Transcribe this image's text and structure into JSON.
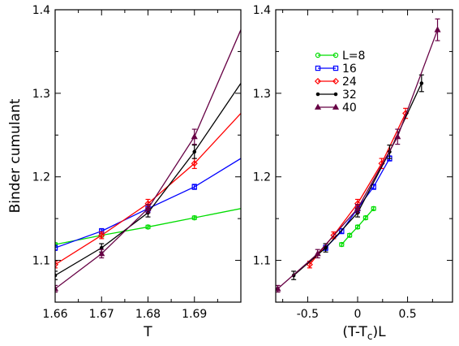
{
  "chart_data": [
    {
      "type": "line",
      "xlabel": "T",
      "ylabel": "Binder cumulant",
      "xlim": [
        1.66,
        1.7
      ],
      "ylim": [
        1.05,
        1.4
      ],
      "xticks": [
        1.66,
        1.67,
        1.68,
        1.69
      ],
      "xtick_labels": [
        "1.66",
        "1.67",
        "1.68",
        "1.69"
      ],
      "yticks": [
        1.1,
        1.2,
        1.3,
        1.4
      ],
      "ytick_labels": [
        "1.1",
        "1.2",
        "1.3",
        "1.4"
      ],
      "grid": false,
      "series": [
        {
          "name": "L=8",
          "color": "#00dd00",
          "marker": "circle",
          "x": [
            1.66,
            1.67,
            1.68,
            1.69
          ],
          "y": [
            1.119,
            1.13,
            1.14,
            1.151
          ],
          "err": [
            0.002,
            0.002,
            0.002,
            0.002
          ],
          "extend": {
            "x": 1.7,
            "y": 1.162
          }
        },
        {
          "name": "16",
          "color": "#0000ff",
          "marker": "square",
          "x": [
            1.66,
            1.67,
            1.68,
            1.69
          ],
          "y": [
            1.115,
            1.135,
            1.162,
            1.188
          ],
          "err": [
            0.003,
            0.003,
            0.004,
            0.003
          ],
          "extend": {
            "x": 1.7,
            "y": 1.222
          }
        },
        {
          "name": "24",
          "color": "#ff0000",
          "marker": "diamond",
          "x": [
            1.66,
            1.67,
            1.68,
            1.69
          ],
          "y": [
            1.095,
            1.13,
            1.168,
            1.216
          ],
          "err": [
            0.004,
            0.004,
            0.005,
            0.006
          ],
          "extend": {
            "x": 1.7,
            "y": 1.276
          }
        },
        {
          "name": "32",
          "color": "#000000",
          "marker": "dot",
          "x": [
            1.66,
            1.67,
            1.68,
            1.69
          ],
          "y": [
            1.082,
            1.115,
            1.157,
            1.23
          ],
          "err": [
            0.005,
            0.005,
            0.005,
            0.008
          ],
          "extend": {
            "x": 1.7,
            "y": 1.312
          }
        },
        {
          "name": "40",
          "color": "#660044",
          "marker": "triangle",
          "x": [
            1.66,
            1.67,
            1.68,
            1.69
          ],
          "y": [
            1.066,
            1.108,
            1.162,
            1.248
          ],
          "err": [
            0.004,
            0.005,
            0.005,
            0.009
          ],
          "extend": {
            "x": 1.7,
            "y": 1.376
          }
        }
      ]
    },
    {
      "type": "line",
      "xlabel_main": "(T-T",
      "xlabel_sub": "c",
      "xlabel_tail": ")L",
      "ylabel": "",
      "xlim": [
        -0.82,
        0.95
      ],
      "ylim": [
        1.05,
        1.4
      ],
      "xticks": [
        -0.5,
        0,
        0.5
      ],
      "xtick_labels": [
        "-0.5",
        "0",
        "0.5"
      ],
      "yticks": [
        1.1,
        1.2,
        1.3,
        1.4
      ],
      "ytick_labels": [
        "1.1",
        "1.2",
        "1.3",
        "1.4"
      ],
      "grid": false,
      "legend_position": "top-left",
      "series": [
        {
          "name": "L=8",
          "color": "#00dd00",
          "marker": "circle",
          "x": [
            -0.16,
            -0.08,
            0.0,
            0.08,
            0.16
          ],
          "y": [
            1.119,
            1.13,
            1.14,
            1.151,
            1.162
          ],
          "err": [
            0.002,
            0.002,
            0.002,
            0.002,
            0.002
          ]
        },
        {
          "name": "16",
          "color": "#0000ff",
          "marker": "square",
          "x": [
            -0.32,
            -0.16,
            0.0,
            0.16,
            0.32
          ],
          "y": [
            1.115,
            1.135,
            1.162,
            1.188,
            1.222
          ],
          "err": [
            0.003,
            0.003,
            0.004,
            0.003,
            0.003
          ]
        },
        {
          "name": "24",
          "color": "#ff0000",
          "marker": "diamond",
          "x": [
            -0.48,
            -0.24,
            0.0,
            0.24,
            0.48
          ],
          "y": [
            1.095,
            1.13,
            1.168,
            1.216,
            1.276
          ],
          "err": [
            0.004,
            0.004,
            0.005,
            0.006,
            0.006
          ]
        },
        {
          "name": "32",
          "color": "#000000",
          "marker": "dot",
          "x": [
            -0.64,
            -0.32,
            0.0,
            0.32,
            0.64
          ],
          "y": [
            1.082,
            1.115,
            1.157,
            1.23,
            1.312
          ],
          "err": [
            0.005,
            0.005,
            0.005,
            0.008,
            0.01
          ]
        },
        {
          "name": "40",
          "color": "#660044",
          "marker": "triangle",
          "x": [
            -0.8,
            -0.4,
            0.0,
            0.4,
            0.8
          ],
          "y": [
            1.066,
            1.108,
            1.162,
            1.248,
            1.376
          ],
          "err": [
            0.004,
            0.005,
            0.005,
            0.009,
            0.013
          ]
        }
      ]
    }
  ]
}
